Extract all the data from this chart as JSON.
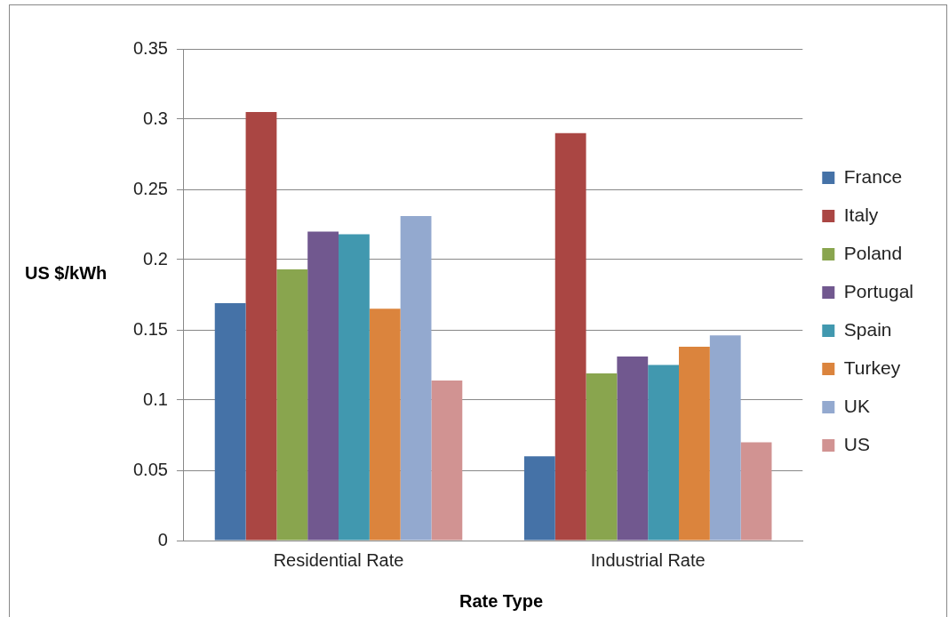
{
  "chart_data": {
    "type": "bar",
    "xlabel": "Rate Type",
    "ylabel": "US $/kWh",
    "categories": [
      "Residential Rate",
      "Industrial Rate"
    ],
    "series": [
      {
        "name": "France",
        "color": "#4572a7",
        "values": [
          0.169,
          0.06
        ]
      },
      {
        "name": "Italy",
        "color": "#aa4643",
        "values": [
          0.305,
          0.29
        ]
      },
      {
        "name": "Poland",
        "color": "#89a54e",
        "values": [
          0.193,
          0.119
        ]
      },
      {
        "name": "Portugal",
        "color": "#71588f",
        "values": [
          0.22,
          0.131
        ]
      },
      {
        "name": "Spain",
        "color": "#4198af",
        "values": [
          0.218,
          0.125
        ]
      },
      {
        "name": "Turkey",
        "color": "#db843d",
        "values": [
          0.165,
          0.138
        ]
      },
      {
        "name": "UK",
        "color": "#93a9cf",
        "values": [
          0.231,
          0.146
        ]
      },
      {
        "name": "US",
        "color": "#d19392",
        "values": [
          0.114,
          0.07
        ]
      }
    ],
    "ylim": [
      0,
      0.35
    ],
    "yticks": [
      0,
      0.05,
      0.1,
      0.15,
      0.2,
      0.25,
      0.3,
      0.35
    ],
    "grid": "y",
    "legend": "right"
  }
}
